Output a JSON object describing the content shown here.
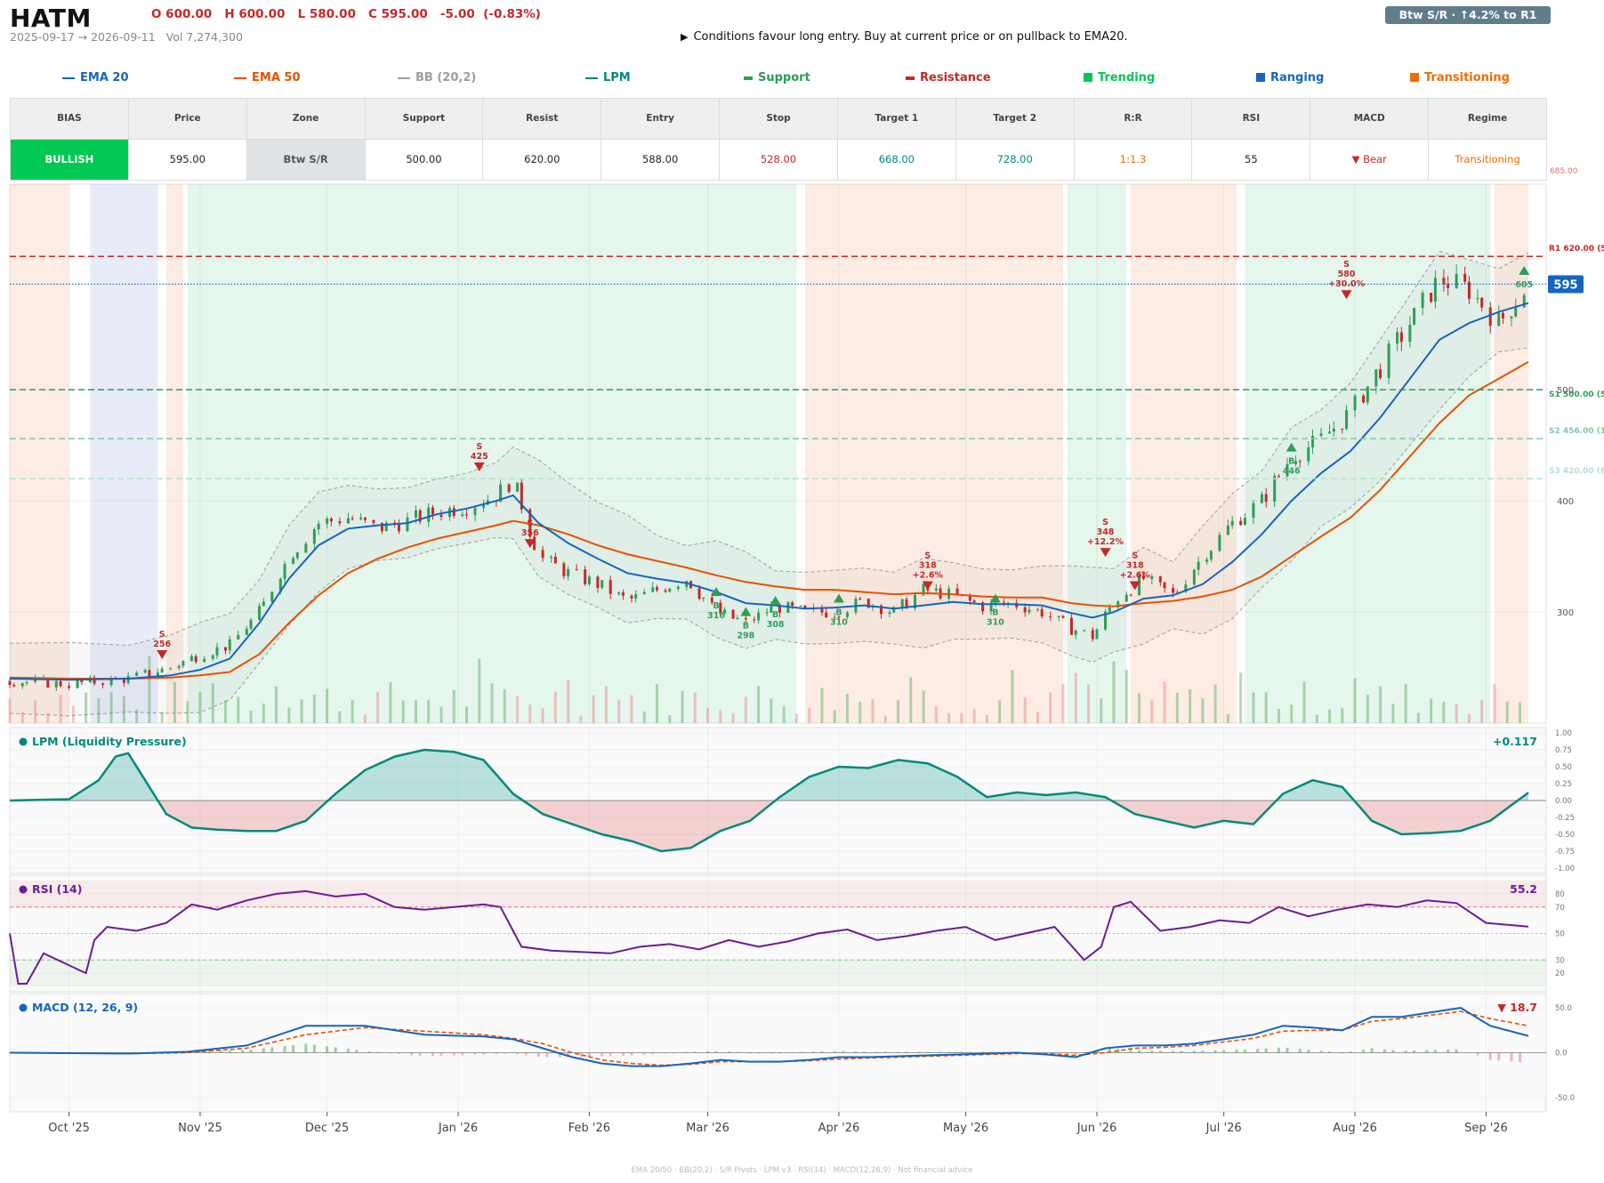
{
  "header": {
    "ticker": "HATM",
    "ohlc": "O 600.00   H 600.00   L 580.00   C 595.00   -5.00  (-0.83%)",
    "date_range": "2025-09-17 → 2026-09-11   Vol 7,274,300",
    "signal_text": "Conditions favour long entry. Buy at current price or on pullback to EMA20.",
    "signal_icon": "play-icon",
    "badge": "Btw S/R  ·  ↑4.2% to R1"
  },
  "legend": [
    {
      "label": "EMA 20",
      "color": "#1565c0",
      "kind": "line"
    },
    {
      "label": "EMA 50",
      "color": "#e65100",
      "kind": "line"
    },
    {
      "label": "BB (20,2)",
      "color": "#9e9e9e",
      "kind": "line"
    },
    {
      "label": "LPM",
      "color": "#00897b",
      "kind": "line"
    },
    {
      "label": "Support",
      "color": "#2e9e57",
      "kind": "bar"
    },
    {
      "label": "Resistance",
      "color": "#c62828",
      "kind": "bar"
    },
    {
      "label": "Trending",
      "color": "#00c853",
      "kind": "square"
    },
    {
      "label": "Ranging",
      "color": "#1565c0",
      "kind": "square"
    },
    {
      "label": "Transitioning",
      "color": "#ef6c00",
      "kind": "square"
    }
  ],
  "table": {
    "headers": [
      "BIAS",
      "Price",
      "Zone",
      "Support",
      "Resist",
      "Entry",
      "Stop",
      "Target 1",
      "Target 2",
      "R:R",
      "RSI",
      "MACD",
      "Regime"
    ],
    "values": [
      "BULLISH",
      "595.00",
      "Btw S/R",
      "500.00",
      "620.00",
      "588.00",
      "528.00",
      "668.00",
      "728.00",
      "1:1.3",
      "55",
      "▼ Bear",
      "Transitioning"
    ],
    "value_colors": [
      "#ffffff",
      "#222222",
      "#555555",
      "#222222",
      "#222222",
      "#222222",
      "#c62828",
      "#00897b",
      "#00897b",
      "#ef6c00",
      "#222222",
      "#c62828",
      "#ef6c00"
    ],
    "value_backgrounds": [
      "#00c853",
      "#ffffff",
      "#dfe3e6",
      "#ffffff",
      "#ffffff",
      "#ffffff",
      "#ffffff",
      "#ffffff",
      "#ffffff",
      "#ffffff",
      "#ffffff",
      "#ffffff",
      "#ffffff"
    ]
  },
  "chart_data": [
    {
      "type": "candlestick",
      "title": "",
      "x_range": [
        "2025-09-17",
        "2026-09-11"
      ],
      "x_tick_labels": [
        "Oct '25",
        "Nov '25",
        "Dec '25",
        "Jan '26",
        "Feb '26",
        "Mar '26",
        "Apr '26",
        "May '26",
        "Jun '26",
        "Jul '26",
        "Aug '26",
        "Sep '26"
      ],
      "x_tick_dates": [
        "2025-10-01",
        "2025-11-01",
        "2025-12-01",
        "2026-01-01",
        "2026-02-01",
        "2026-03-01",
        "2026-04-01",
        "2026-05-01",
        "2026-06-01",
        "2026-07-01",
        "2026-08-01",
        "2026-09-01"
      ],
      "ylim": [
        200,
        685
      ],
      "y_ticks": [
        300,
        400,
        500
      ],
      "top_label": "685.00",
      "close_trace": {
        "dates": [
          "2025-09-17",
          "2025-10-01",
          "2025-10-15",
          "2025-10-25",
          "2025-11-01",
          "2025-11-08",
          "2025-11-15",
          "2025-11-22",
          "2025-11-29",
          "2025-12-06",
          "2025-12-13",
          "2025-12-20",
          "2025-12-27",
          "2026-01-03",
          "2026-01-10",
          "2026-01-14",
          "2026-01-20",
          "2026-01-27",
          "2026-02-03",
          "2026-02-10",
          "2026-02-17",
          "2026-02-24",
          "2026-03-03",
          "2026-03-10",
          "2026-03-17",
          "2026-03-24",
          "2026-03-31",
          "2026-04-07",
          "2026-04-14",
          "2026-04-21",
          "2026-04-28",
          "2026-05-05",
          "2026-05-12",
          "2026-05-19",
          "2026-05-26",
          "2026-05-31",
          "2026-06-05",
          "2026-06-12",
          "2026-06-19",
          "2026-06-26",
          "2026-07-03",
          "2026-07-10",
          "2026-07-17",
          "2026-07-24",
          "2026-07-31",
          "2026-08-07",
          "2026-08-14",
          "2026-08-21",
          "2026-08-28",
          "2026-09-04",
          "2026-09-11"
        ],
        "values": [
          238,
          235,
          240,
          250,
          262,
          270,
          300,
          350,
          380,
          385,
          375,
          382,
          390,
          395,
          405,
          420,
          350,
          335,
          325,
          310,
          320,
          330,
          300,
          290,
          305,
          300,
          300,
          310,
          300,
          320,
          315,
          305,
          308,
          300,
          285,
          278,
          310,
          330,
          315,
          350,
          380,
          400,
          440,
          455,
          480,
          520,
          560,
          600,
          590,
          560,
          595
        ]
      },
      "series": [
        {
          "name": "EMA 20",
          "values": [
            240,
            239,
            240,
            243,
            248,
            258,
            290,
            330,
            360,
            375,
            378,
            380,
            388,
            393,
            400,
            405,
            380,
            362,
            348,
            335,
            330,
            326,
            318,
            308,
            306,
            303,
            304,
            306,
            303,
            306,
            309,
            307,
            307,
            306,
            299,
            295,
            300,
            312,
            315,
            325,
            345,
            370,
            400,
            425,
            445,
            475,
            510,
            545,
            560,
            570,
            578
          ]
        },
        {
          "name": "EMA 50",
          "values": [
            241,
            240,
            240,
            241,
            243,
            246,
            262,
            290,
            315,
            335,
            348,
            358,
            366,
            372,
            378,
            382,
            378,
            370,
            360,
            352,
            346,
            340,
            333,
            327,
            323,
            320,
            320,
            318,
            316,
            317,
            316,
            314,
            313,
            313,
            308,
            306,
            305,
            308,
            310,
            314,
            320,
            332,
            350,
            368,
            385,
            410,
            440,
            470,
            495,
            510,
            525
          ]
        }
      ],
      "support_resistance": [
        {
          "label": "R1 620.00 (5x)",
          "value": 620,
          "color": "#c62828"
        },
        {
          "label": "S1 500.00 (5x)",
          "value": 500,
          "color": "#2e9e57"
        },
        {
          "label": "S2 456.00 (11x)",
          "value": 456,
          "color": "#80c9a0"
        },
        {
          "label": "S3 420.00 (8x)",
          "value": 420,
          "color": "#b5e2c8"
        }
      ],
      "current_price": 595,
      "regimes": [
        {
          "start": "2025-09-17",
          "end": "2025-10-01",
          "regime": "Transitioning"
        },
        {
          "start": "2025-10-06",
          "end": "2025-10-22",
          "regime": "Ranging"
        },
        {
          "start": "2025-10-24",
          "end": "2025-10-28",
          "regime": "Transitioning"
        },
        {
          "start": "2025-10-29",
          "end": "2026-03-22",
          "regime": "Trending"
        },
        {
          "start": "2026-03-24",
          "end": "2026-05-24",
          "regime": "Transitioning"
        },
        {
          "start": "2026-05-25",
          "end": "2026-06-08",
          "regime": "Trending"
        },
        {
          "start": "2026-06-09",
          "end": "2026-07-04",
          "regime": "Transitioning"
        },
        {
          "start": "2026-07-06",
          "end": "2026-09-02",
          "regime": "Trending"
        },
        {
          "start": "2026-09-03",
          "end": "2026-09-11",
          "regime": "Transitioning"
        }
      ],
      "signals": [
        {
          "type": "S",
          "date": "2025-10-23",
          "price": 256,
          "label": "S\n256"
        },
        {
          "type": "S",
          "date": "2026-01-06",
          "price": 425,
          "label": "S\n425"
        },
        {
          "type": "S",
          "date": "2026-01-18",
          "price": 356,
          "label": "S\n356"
        },
        {
          "type": "B",
          "date": "2026-03-03",
          "price": 316,
          "label": "B\n316"
        },
        {
          "type": "B",
          "date": "2026-03-10",
          "price": 298,
          "label": "B\n298"
        },
        {
          "type": "B",
          "date": "2026-03-17",
          "price": 308,
          "label": "B\n308"
        },
        {
          "type": "B",
          "date": "2026-04-01",
          "price": 310,
          "label": "B\n310"
        },
        {
          "type": "S",
          "date": "2026-04-22",
          "price": 318,
          "label": "S\n318\n+2.6%"
        },
        {
          "type": "B",
          "date": "2026-05-08",
          "price": 310,
          "label": "B\n310"
        },
        {
          "type": "S",
          "date": "2026-06-03",
          "price": 348,
          "label": "S\n348\n+12.2%"
        },
        {
          "type": "S",
          "date": "2026-06-10",
          "price": 318,
          "label": "S\n318\n+2.6%"
        },
        {
          "type": "B",
          "date": "2026-07-17",
          "price": 446,
          "label": "B\n446"
        },
        {
          "type": "S",
          "date": "2026-07-30",
          "price": 580,
          "label": "S\n580\n+30.0%"
        },
        {
          "type": "B",
          "date": "2026-09-10",
          "price": 605,
          "label": "605"
        }
      ],
      "volume_marker": "volume bars in lower band (green = up, red = down)"
    },
    {
      "type": "area",
      "title": "LPM (Liquidity Pressure)",
      "last_value_label": "+0.117",
      "ylim": [
        -1.0,
        1.0
      ],
      "y_ticks": [
        "1.00",
        "0.75",
        "0.50",
        "0.25",
        "0.00",
        "-0.25",
        "-0.50",
        "-0.75",
        "-1.00"
      ],
      "dates": [
        "2025-09-17",
        "2025-10-01",
        "2025-10-08",
        "2025-10-12",
        "2025-10-15",
        "2025-10-20",
        "2025-10-24",
        "2025-10-30",
        "2025-11-05",
        "2025-11-12",
        "2025-11-19",
        "2025-11-26",
        "2025-12-03",
        "2025-12-10",
        "2025-12-17",
        "2025-12-24",
        "2025-12-31",
        "2026-01-07",
        "2026-01-14",
        "2026-01-21",
        "2026-01-28",
        "2026-02-04",
        "2026-02-11",
        "2026-02-18",
        "2026-02-25",
        "2026-03-04",
        "2026-03-11",
        "2026-03-18",
        "2026-03-25",
        "2026-04-01",
        "2026-04-08",
        "2026-04-15",
        "2026-04-22",
        "2026-04-29",
        "2026-05-06",
        "2026-05-13",
        "2026-05-20",
        "2026-05-27",
        "2026-06-03",
        "2026-06-10",
        "2026-06-17",
        "2026-06-24",
        "2026-07-01",
        "2026-07-08",
        "2026-07-15",
        "2026-07-22",
        "2026-07-29",
        "2026-08-05",
        "2026-08-12",
        "2026-08-19",
        "2026-08-26",
        "2026-09-02",
        "2026-09-11"
      ],
      "values": [
        0.0,
        0.02,
        0.3,
        0.65,
        0.7,
        0.2,
        -0.2,
        -0.4,
        -0.43,
        -0.45,
        -0.45,
        -0.3,
        0.1,
        0.45,
        0.65,
        0.75,
        0.72,
        0.6,
        0.1,
        -0.2,
        -0.35,
        -0.5,
        -0.6,
        -0.75,
        -0.7,
        -0.45,
        -0.3,
        0.05,
        0.35,
        0.5,
        0.48,
        0.6,
        0.55,
        0.35,
        0.05,
        0.12,
        0.08,
        0.12,
        0.05,
        -0.2,
        -0.3,
        -0.4,
        -0.3,
        -0.35,
        0.1,
        0.3,
        0.2,
        -0.3,
        -0.5,
        -0.48,
        -0.45,
        -0.3,
        0.117
      ]
    },
    {
      "type": "line",
      "title": "RSI (14)",
      "last_value_label": "55.2",
      "ylim": [
        10,
        90
      ],
      "y_ticks": [
        "80",
        "70",
        "50",
        "30",
        "20"
      ],
      "thresholds": [
        70,
        30
      ],
      "dates": [
        "2025-09-17",
        "2025-09-19",
        "2025-09-21",
        "2025-09-25",
        "2025-10-05",
        "2025-10-07",
        "2025-10-10",
        "2025-10-17",
        "2025-10-24",
        "2025-10-30",
        "2025-11-05",
        "2025-11-12",
        "2025-11-19",
        "2025-11-26",
        "2025-12-03",
        "2025-12-10",
        "2025-12-17",
        "2025-12-24",
        "2025-12-31",
        "2026-01-07",
        "2026-01-11",
        "2026-01-16",
        "2026-01-23",
        "2026-01-30",
        "2026-02-06",
        "2026-02-13",
        "2026-02-20",
        "2026-02-27",
        "2026-03-06",
        "2026-03-13",
        "2026-03-20",
        "2026-03-27",
        "2026-04-03",
        "2026-04-10",
        "2026-04-17",
        "2026-04-24",
        "2026-05-01",
        "2026-05-08",
        "2026-05-15",
        "2026-05-22",
        "2026-05-29",
        "2026-06-02",
        "2026-06-05",
        "2026-06-09",
        "2026-06-16",
        "2026-06-23",
        "2026-06-30",
        "2026-07-07",
        "2026-07-14",
        "2026-07-21",
        "2026-07-28",
        "2026-08-04",
        "2026-08-11",
        "2026-08-18",
        "2026-08-25",
        "2026-09-01",
        "2026-09-11"
      ],
      "values": [
        50,
        12,
        12,
        35,
        20,
        45,
        55,
        52,
        58,
        72,
        68,
        75,
        80,
        82,
        78,
        80,
        70,
        68,
        70,
        72,
        70,
        40,
        37,
        36,
        35,
        40,
        42,
        38,
        45,
        40,
        44,
        50,
        53,
        45,
        48,
        52,
        55,
        45,
        50,
        55,
        30,
        40,
        70,
        74,
        52,
        55,
        60,
        58,
        70,
        63,
        68,
        72,
        70,
        75,
        73,
        58,
        55.2
      ]
    },
    {
      "type": "line",
      "title": "MACD (12, 26, 9)",
      "last_value_label": "▼ 18.7",
      "ylim": [
        -60,
        60
      ],
      "y_ticks": [
        "50.0",
        "0.0",
        "-50.0"
      ],
      "dates": [
        "2025-09-17",
        "2025-10-15",
        "2025-10-29",
        "2025-11-12",
        "2025-11-26",
        "2025-12-10",
        "2025-12-24",
        "2026-01-07",
        "2026-01-14",
        "2026-01-21",
        "2026-01-28",
        "2026-02-04",
        "2026-02-11",
        "2026-02-18",
        "2026-02-25",
        "2026-03-04",
        "2026-03-11",
        "2026-03-18",
        "2026-03-25",
        "2026-04-01",
        "2026-04-08",
        "2026-04-15",
        "2026-04-22",
        "2026-04-29",
        "2026-05-06",
        "2026-05-13",
        "2026-05-20",
        "2026-05-27",
        "2026-06-03",
        "2026-06-10",
        "2026-06-17",
        "2026-06-24",
        "2026-07-01",
        "2026-07-08",
        "2026-07-15",
        "2026-07-22",
        "2026-07-29",
        "2026-08-05",
        "2026-08-12",
        "2026-08-19",
        "2026-08-26",
        "2026-09-02",
        "2026-09-11"
      ],
      "series": [
        {
          "name": "MACD",
          "values": [
            0,
            -1,
            1,
            8,
            30,
            30,
            20,
            18,
            15,
            5,
            -5,
            -12,
            -15,
            -15,
            -12,
            -8,
            -10,
            -10,
            -8,
            -5,
            -5,
            -4,
            -3,
            -2,
            -1,
            0,
            -2,
            -5,
            5,
            8,
            8,
            10,
            15,
            20,
            30,
            28,
            25,
            40,
            40,
            45,
            50,
            30,
            18.7
          ]
        },
        {
          "name": "Signal",
          "values": [
            0,
            -1,
            0,
            5,
            20,
            28,
            24,
            20,
            16,
            10,
            0,
            -8,
            -12,
            -14,
            -13,
            -10,
            -10,
            -10,
            -9,
            -7,
            -6,
            -5,
            -4,
            -3,
            -2,
            -1,
            -1,
            -3,
            0,
            5,
            6,
            8,
            12,
            16,
            24,
            25,
            25,
            35,
            38,
            42,
            46,
            38,
            30
          ]
        }
      ]
    }
  ],
  "footer": "EMA 20/50  ·  BB(20,2)  ·  S/R Pivots  ·  LPM v3  ·  RSI(14)  ·  MACD(12,26,9)  ·  Not financial advice"
}
